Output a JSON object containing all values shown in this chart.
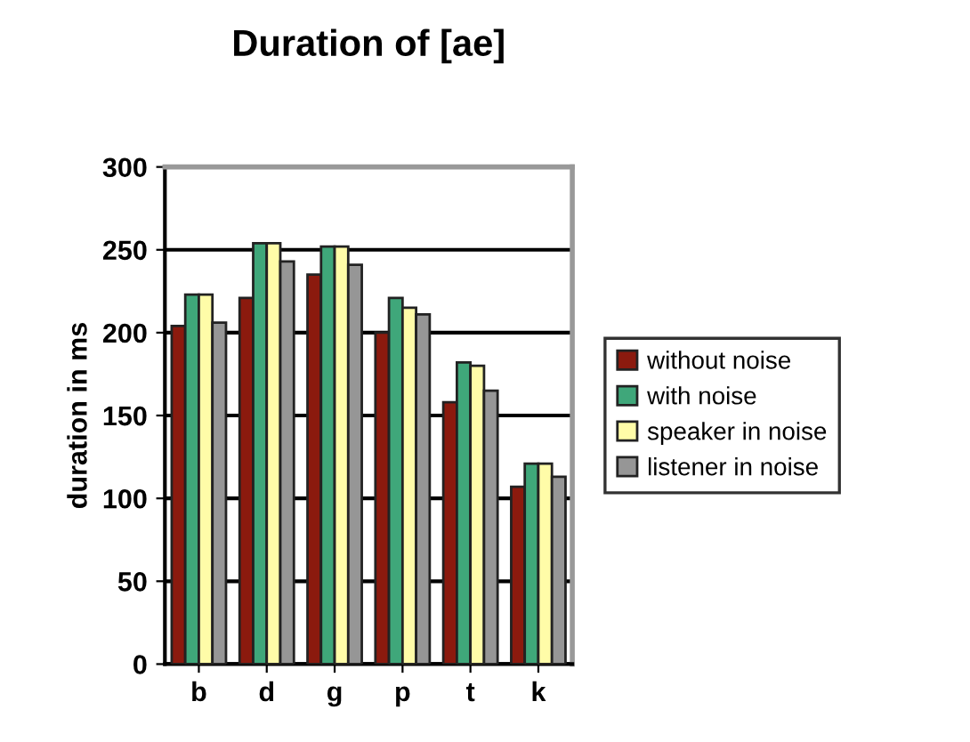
{
  "chart_data": {
    "type": "bar",
    "title": "Duration of [ae]",
    "ylabel": "duration in ms",
    "categories": [
      "b",
      "d",
      "g",
      "p",
      "t",
      "k"
    ],
    "series": [
      {
        "name": "without noise",
        "color": "#8b1a0e",
        "values": [
          204,
          221,
          235,
          200,
          158,
          107
        ]
      },
      {
        "name": "with noise",
        "color": "#3fa77a",
        "values": [
          223,
          254,
          252,
          221,
          182,
          121
        ]
      },
      {
        "name": "speaker in noise",
        "color": "#fffca8",
        "values": [
          223,
          254,
          252,
          215,
          180,
          121
        ]
      },
      {
        "name": "listener in noise",
        "color": "#969696",
        "values": [
          206,
          243,
          241,
          211,
          165,
          113
        ]
      }
    ],
    "ylim": [
      0,
      300
    ],
    "yticks": [
      0,
      50,
      100,
      150,
      200,
      250,
      300
    ],
    "grid": "y",
    "legend": "right"
  }
}
